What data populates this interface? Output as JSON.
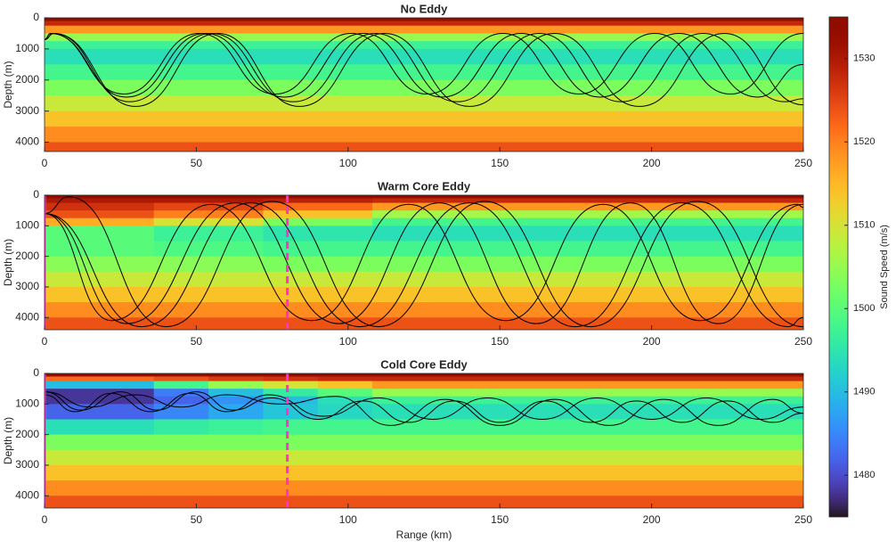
{
  "chart_data": [
    {
      "type": "ray_trace",
      "title": "No Eddy",
      "y_label": "Depth (m)",
      "xlim": [
        0,
        250
      ],
      "xticks": [
        0,
        50,
        100,
        150,
        200,
        250
      ],
      "ylim": [
        0,
        4300
      ],
      "yticks": [
        0,
        1000,
        2000,
        3000,
        4000
      ],
      "heatmap": {
        "range_edges": [
          0,
          250
        ],
        "depth_edges": [
          0,
          100,
          250,
          500,
          750,
          1000,
          1500,
          2000,
          2500,
          3000,
          3500,
          4000,
          4400
        ],
        "values": [
          [
            1535
          ],
          [
            1528
          ],
          [
            1518
          ],
          [
            1505
          ],
          [
            1497
          ],
          [
            1494
          ],
          [
            1498
          ],
          [
            1503
          ],
          [
            1509
          ],
          [
            1514
          ],
          [
            1519
          ],
          [
            1524
          ]
        ]
      },
      "ray_color": "#000000",
      "vlines": [],
      "rays": [
        {
          "x": [
            0,
            2,
            27,
            53,
            79,
            105,
            131,
            157,
            183,
            209,
            235,
            250
          ],
          "y": [
            700,
            500,
            2550,
            500,
            2550,
            500,
            2550,
            500,
            2550,
            500,
            2550,
            1500
          ]
        },
        {
          "x": [
            0,
            3,
            28,
            55,
            82,
            109,
            136,
            163,
            190,
            217,
            244,
            250
          ],
          "y": [
            700,
            500,
            2700,
            500,
            2700,
            500,
            2700,
            500,
            2700,
            500,
            2700,
            2600
          ]
        },
        {
          "x": [
            0,
            3,
            30,
            57,
            84,
            112,
            140,
            168,
            196,
            224,
            250
          ],
          "y": [
            700,
            500,
            2850,
            500,
            2850,
            500,
            2850,
            500,
            2850,
            500,
            2800
          ]
        },
        {
          "x": [
            0,
            2,
            26,
            51,
            76,
            101,
            126,
            151,
            176,
            201,
            226,
            250
          ],
          "y": [
            700,
            500,
            2450,
            500,
            2450,
            500,
            2450,
            500,
            2450,
            500,
            2450,
            500
          ]
        }
      ]
    },
    {
      "type": "ray_trace",
      "title": "Warm Core Eddy",
      "y_label": "Depth (m)",
      "xlim": [
        0,
        250
      ],
      "xticks": [
        0,
        50,
        100,
        150,
        200,
        250
      ],
      "ylim": [
        0,
        4400
      ],
      "yticks": [
        0,
        1000,
        2000,
        3000,
        4000
      ],
      "heatmap": {
        "range_edges": [
          0,
          36,
          72,
          108,
          250
        ],
        "depth_edges": [
          0,
          100,
          250,
          500,
          750,
          1000,
          1500,
          2000,
          2500,
          3000,
          3500,
          4000,
          4400
        ],
        "values": [
          [
            1535,
            1535,
            1535,
            1535
          ],
          [
            1530,
            1530,
            1529,
            1528
          ],
          [
            1527,
            1525,
            1522,
            1518
          ],
          [
            1524,
            1520,
            1514,
            1506
          ],
          [
            1516,
            1510,
            1503,
            1498
          ],
          [
            1500,
            1497,
            1495,
            1494
          ],
          [
            1500,
            1499,
            1498,
            1498
          ],
          [
            1504,
            1504,
            1503,
            1503
          ],
          [
            1509,
            1509,
            1509,
            1509
          ],
          [
            1514,
            1514,
            1514,
            1514
          ],
          [
            1519,
            1519,
            1519,
            1519
          ],
          [
            1524,
            1524,
            1524,
            1524
          ]
        ]
      },
      "ray_color": "#000000",
      "vline_color": "#ff33cc",
      "vlines": [
        {
          "x": 0,
          "style": "solid"
        },
        {
          "x": 80,
          "style": "dashed"
        }
      ],
      "rays": [
        {
          "x": [
            0,
            27,
            63,
            97,
            130,
            162,
            193,
            222,
            250
          ],
          "y": [
            600,
            4200,
            250,
            4200,
            250,
            4200,
            250,
            4200,
            300
          ]
        },
        {
          "x": [
            0,
            32,
            68,
            104,
            140,
            175,
            210,
            245,
            250
          ],
          "y": [
            600,
            4300,
            250,
            4300,
            250,
            4300,
            250,
            4300,
            4000
          ]
        },
        {
          "x": [
            0,
            8,
            40,
            75,
            110,
            145,
            180,
            215,
            250
          ],
          "y": [
            600,
            50,
            4300,
            200,
            4300,
            200,
            4300,
            200,
            4300
          ]
        },
        {
          "x": [
            0,
            22,
            55,
            88,
            120,
            152,
            184,
            216,
            248,
            250
          ],
          "y": [
            600,
            4100,
            300,
            4100,
            300,
            4100,
            300,
            4100,
            300,
            400
          ]
        }
      ]
    },
    {
      "type": "ray_trace",
      "title": "Cold Core Eddy",
      "y_label": "Depth (m)",
      "x_label": "Range (km)",
      "xlim": [
        0,
        250
      ],
      "xticks": [
        0,
        50,
        100,
        150,
        200,
        250
      ],
      "ylim": [
        0,
        4400
      ],
      "yticks": [
        0,
        1000,
        2000,
        3000,
        4000
      ],
      "heatmap": {
        "range_edges": [
          0,
          36,
          54,
          72,
          90,
          108,
          250
        ],
        "depth_edges": [
          0,
          100,
          250,
          500,
          750,
          1000,
          1500,
          2000,
          2500,
          3000,
          3500,
          4000,
          4400
        ],
        "values": [
          [
            1535,
            1535,
            1535,
            1535,
            1535,
            1535
          ],
          [
            1522,
            1524,
            1526,
            1527,
            1528,
            1528
          ],
          [
            1490,
            1498,
            1505,
            1510,
            1514,
            1518
          ],
          [
            1478,
            1484,
            1490,
            1496,
            1500,
            1505
          ],
          [
            1478,
            1482,
            1486,
            1490,
            1494,
            1497
          ],
          [
            1482,
            1485,
            1488,
            1491,
            1493,
            1494
          ],
          [
            1494,
            1496,
            1497,
            1498,
            1498,
            1498
          ],
          [
            1503,
            1503,
            1503,
            1503,
            1503,
            1503
          ],
          [
            1509,
            1509,
            1509,
            1509,
            1509,
            1509
          ],
          [
            1514,
            1514,
            1514,
            1514,
            1514,
            1514
          ],
          [
            1519,
            1519,
            1519,
            1519,
            1519,
            1519
          ],
          [
            1524,
            1524,
            1524,
            1524,
            1524,
            1524
          ]
        ]
      },
      "ray_color": "#000000",
      "vline_color": "#ff33cc",
      "vlines": [
        {
          "x": 0,
          "style": "solid"
        },
        {
          "x": 80,
          "style": "dashed"
        }
      ],
      "rays": [
        {
          "x": [
            0,
            12,
            25,
            37,
            50,
            62,
            75,
            90,
            105,
            120,
            135,
            150,
            165,
            180,
            195,
            210,
            225,
            240,
            250
          ],
          "y": [
            600,
            1200,
            600,
            1200,
            600,
            1200,
            800,
            1500,
            900,
            1600,
            900,
            1600,
            900,
            1600,
            900,
            1600,
            900,
            1600,
            1300
          ]
        },
        {
          "x": [
            0,
            15,
            30,
            45,
            60,
            78,
            96,
            114,
            132,
            150,
            168,
            186,
            204,
            222,
            240,
            250
          ],
          "y": [
            600,
            1100,
            700,
            1100,
            700,
            1000,
            750,
            1700,
            850,
            1700,
            850,
            1700,
            850,
            1700,
            850,
            1300
          ]
        },
        {
          "x": [
            0,
            10,
            22,
            35,
            48,
            60,
            74,
            92,
            110,
            128,
            146,
            164,
            182,
            200,
            218,
            236,
            250
          ],
          "y": [
            700,
            1250,
            650,
            1250,
            650,
            1250,
            700,
            1400,
            800,
            1500,
            800,
            1500,
            800,
            1500,
            800,
            1500,
            1100
          ]
        }
      ]
    }
  ],
  "colorbar": {
    "label": "Sound Speed (m/s)",
    "clim": [
      1475,
      1535
    ],
    "ticks": [
      1480,
      1490,
      1500,
      1510,
      1520,
      1530
    ]
  }
}
